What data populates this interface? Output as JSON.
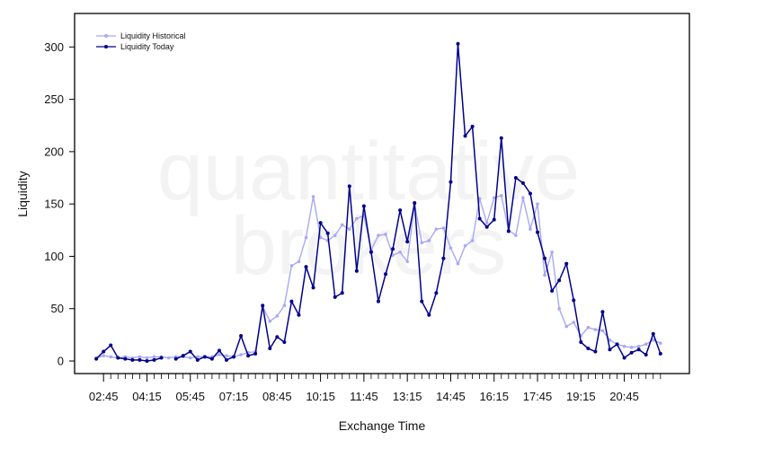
{
  "watermark": {
    "line1": "quantitative",
    "line2": "brokers"
  },
  "chart_data": {
    "type": "line",
    "xlabel": "Exchange Time",
    "ylabel": "Liquidity",
    "ylim": [
      -12,
      332
    ],
    "y_ticks": [
      0,
      50,
      100,
      150,
      200,
      250,
      300
    ],
    "x_tick_labels": [
      "02:45",
      "04:15",
      "05:45",
      "07:15",
      "08:45",
      "10:15",
      "11:45",
      "13:15",
      "14:45",
      "16:15",
      "17:45",
      "19:15",
      "20:45"
    ],
    "x_tick_positions": [
      2.75,
      4.25,
      5.75,
      7.25,
      8.75,
      10.25,
      11.75,
      13.25,
      14.75,
      16.25,
      17.75,
      19.25,
      20.75
    ],
    "x_minor_step": 0.25,
    "xlim": [
      1.75,
      23.0
    ],
    "grid": false,
    "legend_position": "top-left",
    "colors": {
      "historical": "#a7a9f3",
      "today": "#00008b"
    },
    "series": [
      {
        "name": "Liquidity Historical",
        "x": [
          2.5,
          2.75,
          3.0,
          3.25,
          3.5,
          3.75,
          4.0,
          4.25,
          4.5,
          4.75,
          5.0,
          5.25,
          5.5,
          5.75,
          6.0,
          6.25,
          6.5,
          6.75,
          7.0,
          7.25,
          7.5,
          7.75,
          8.0,
          8.25,
          8.5,
          8.75,
          9.0,
          9.25,
          9.5,
          9.75,
          10.0,
          10.25,
          10.5,
          10.75,
          11.0,
          11.25,
          11.5,
          11.75,
          12.0,
          12.25,
          12.5,
          12.75,
          13.0,
          13.25,
          13.5,
          13.75,
          14.0,
          14.25,
          14.5,
          14.75,
          15.0,
          15.25,
          15.5,
          15.75,
          16.0,
          16.25,
          16.5,
          16.75,
          17.0,
          17.25,
          17.5,
          17.75,
          18.0,
          18.25,
          18.5,
          18.75,
          19.0,
          19.25,
          19.5,
          19.75,
          20.0,
          20.25,
          20.5,
          20.75,
          21.0,
          21.25,
          21.5,
          21.75,
          22.0
        ],
        "values": [
          3,
          5,
          4,
          3,
          4,
          3,
          4,
          3,
          4,
          4,
          3,
          4,
          4,
          3,
          4,
          4,
          4,
          6,
          5,
          4,
          6,
          8,
          9,
          52,
          38,
          43,
          53,
          91,
          95,
          118,
          157,
          118,
          115,
          120,
          130,
          126,
          136,
          139,
          106,
          120,
          121,
          101,
          104,
          95,
          150,
          113,
          115,
          126,
          127,
          108,
          93,
          110,
          115,
          155,
          132,
          156,
          158,
          125,
          120,
          156,
          126,
          150,
          82,
          104,
          50,
          33,
          37,
          24,
          32,
          30,
          29,
          20,
          16,
          14,
          13,
          14,
          16,
          20,
          17
        ]
      },
      {
        "name": "Liquidity Today",
        "x": [
          2.5,
          2.75,
          3.0,
          3.25,
          3.5,
          3.75,
          4.0,
          4.25,
          4.5,
          4.75,
          5.0,
          5.25,
          5.5,
          5.75,
          6.0,
          6.25,
          6.5,
          6.75,
          7.0,
          7.25,
          7.5,
          7.75,
          8.0,
          8.25,
          8.5,
          8.75,
          9.0,
          9.25,
          9.5,
          9.75,
          10.0,
          10.25,
          10.5,
          10.75,
          11.0,
          11.25,
          11.5,
          11.75,
          12.0,
          12.25,
          12.5,
          12.75,
          13.0,
          13.25,
          13.5,
          13.75,
          14.0,
          14.25,
          14.5,
          14.75,
          15.0,
          15.25,
          15.5,
          15.75,
          16.0,
          16.25,
          16.5,
          16.75,
          17.0,
          17.25,
          17.5,
          17.75,
          18.0,
          18.25,
          18.5,
          18.75,
          19.0,
          19.25,
          19.5,
          19.75,
          20.0,
          20.25,
          20.5,
          20.75,
          21.0,
          21.25,
          21.5,
          21.75,
          22.0
        ],
        "values": [
          2,
          9,
          15,
          3,
          2,
          1,
          1,
          0,
          1,
          3,
          null,
          2,
          5,
          9,
          1,
          4,
          2,
          10,
          1,
          4,
          24,
          5,
          7,
          53,
          12,
          23,
          18,
          57,
          44,
          90,
          70,
          132,
          122,
          61,
          65,
          167,
          86,
          148,
          104,
          57,
          83,
          107,
          144,
          114,
          151,
          57,
          44,
          65,
          98,
          171,
          303,
          215,
          224,
          136,
          128,
          135,
          213,
          124,
          175,
          170,
          160,
          123,
          98,
          67,
          77,
          93,
          58,
          18,
          12,
          9,
          47,
          11,
          16,
          3,
          8,
          11,
          6,
          26,
          7
        ]
      }
    ]
  }
}
